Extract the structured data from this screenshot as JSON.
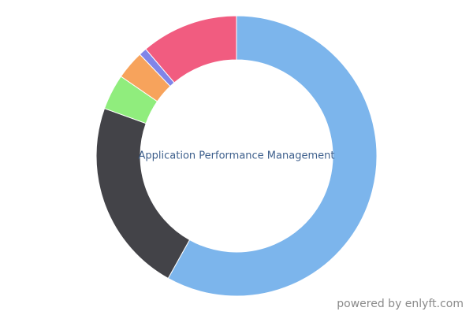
{
  "chart_data": {
    "type": "donut",
    "center_label": "Application Performance Management",
    "credit": "powered by enlyft.com",
    "values": [
      58.1,
      22.4,
      4.1,
      3.3,
      0.9,
      11.2
    ],
    "colors": [
      "#7cb5ec",
      "#434348",
      "#90ed7d",
      "#f7a35c",
      "#8085e9",
      "#f15c80"
    ]
  }
}
